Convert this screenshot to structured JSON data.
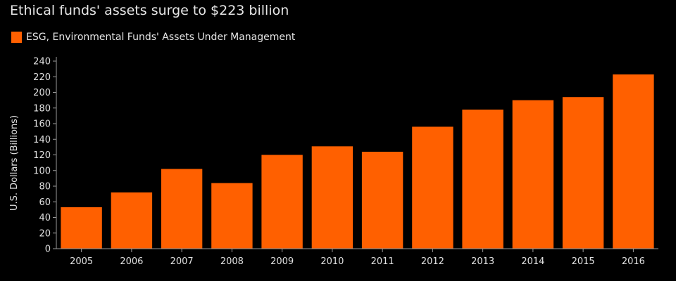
{
  "chart_data": {
    "type": "bar",
    "title": "Ethical funds' assets surge to $223 billion",
    "xlabel": "",
    "ylabel": "U.S. Dollars (Billions)",
    "categories": [
      "2005",
      "2006",
      "2007",
      "2008",
      "2009",
      "2010",
      "2011",
      "2012",
      "2013",
      "2014",
      "2015",
      "2016"
    ],
    "series": [
      {
        "name": "ESG, Environmental Funds' Assets Under Management",
        "values": [
          53,
          72,
          102,
          84,
          120,
          131,
          124,
          156,
          178,
          190,
          194,
          223
        ],
        "color": "#ff6000"
      }
    ],
    "ylim": [
      0,
      240
    ],
    "yticks": [
      0,
      20,
      40,
      60,
      80,
      100,
      120,
      140,
      160,
      180,
      200,
      220,
      240
    ],
    "grid": false,
    "legend": "top-left",
    "background": "#000000",
    "axis_color": "#9a9a9a"
  }
}
